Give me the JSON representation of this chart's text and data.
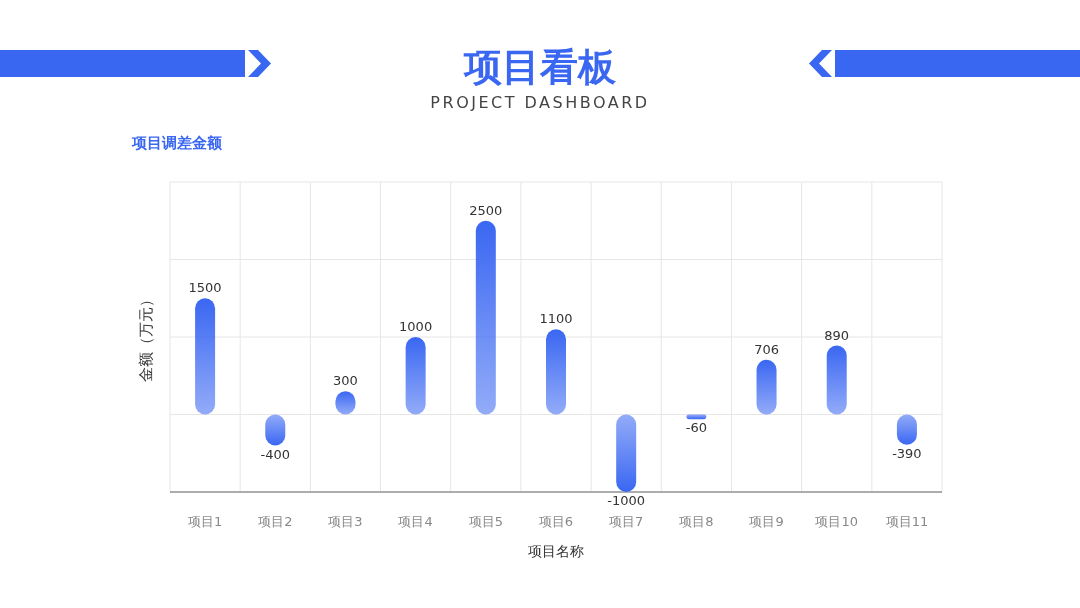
{
  "chart_data": {
    "type": "bar",
    "title": "项目看板",
    "subtitle": "PROJECT DASHBOARD",
    "annotations": [
      "项目调差金额"
    ],
    "xlabel": "项目名称",
    "ylabel": "金额（万元）",
    "categories": [
      "项目1",
      "项目2",
      "项目3",
      "项目4",
      "项目5",
      "项目6",
      "项目7",
      "项目8",
      "项目9",
      "项目10",
      "项目11"
    ],
    "values": [
      1500,
      -400,
      300,
      1000,
      2500,
      1100,
      -1000,
      -60,
      706,
      890,
      -390
    ],
    "color": "#3a67f2",
    "ylim": [
      -1000,
      3000
    ],
    "yticks": [
      {
        "value": -1000,
        "label": null
      },
      {
        "value": 0,
        "label": null
      },
      {
        "value": 1000,
        "label": null
      },
      {
        "value": 2000,
        "label": null
      },
      {
        "value": 3000,
        "label": null
      }
    ],
    "tick_labels": "x",
    "grid": true,
    "data_labels": true
  }
}
